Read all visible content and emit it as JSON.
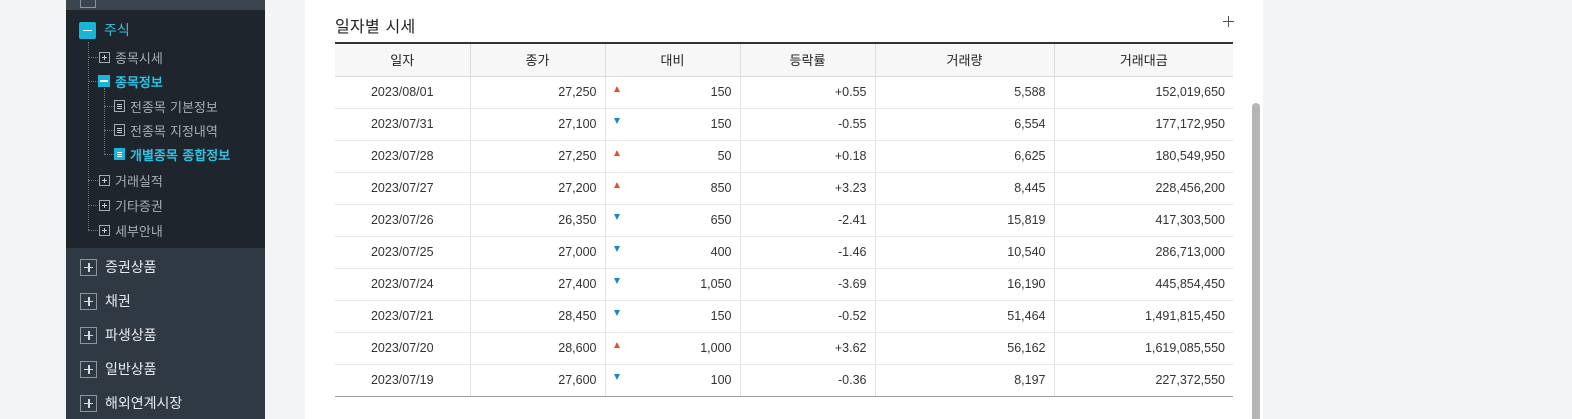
{
  "sidebar": {
    "stock_label": "주식",
    "children": [
      {
        "label": "종목시세"
      },
      {
        "label": "종목정보"
      },
      {
        "label": "거래실적"
      },
      {
        "label": "기타증권"
      },
      {
        "label": "세부안내"
      }
    ],
    "info_children": [
      {
        "label": "전종목 기본정보"
      },
      {
        "label": "전종목 지정내역"
      },
      {
        "label": "개별종목 종합정보"
      }
    ],
    "categories": [
      {
        "label": "증권상품"
      },
      {
        "label": "채권"
      },
      {
        "label": "파생상품"
      },
      {
        "label": "일반상품"
      },
      {
        "label": "해외연계시장"
      }
    ]
  },
  "section": {
    "title": "일자별 시세"
  },
  "table": {
    "headers": {
      "date": "일자",
      "close": "종가",
      "change": "대비",
      "rate": "등락률",
      "volume": "거래량",
      "amount": "거래대금"
    },
    "rows": [
      {
        "date": "2023/08/01",
        "close": "27,250",
        "dir": "up",
        "change": "150",
        "rate": "+0.55",
        "volume": "5,588",
        "amount": "152,019,650"
      },
      {
        "date": "2023/07/31",
        "close": "27,100",
        "dir": "down",
        "change": "150",
        "rate": "-0.55",
        "volume": "6,554",
        "amount": "177,172,950"
      },
      {
        "date": "2023/07/28",
        "close": "27,250",
        "dir": "up",
        "change": "50",
        "rate": "+0.18",
        "volume": "6,625",
        "amount": "180,549,950"
      },
      {
        "date": "2023/07/27",
        "close": "27,200",
        "dir": "up",
        "change": "850",
        "rate": "+3.23",
        "volume": "8,445",
        "amount": "228,456,200"
      },
      {
        "date": "2023/07/26",
        "close": "26,350",
        "dir": "down",
        "change": "650",
        "rate": "-2.41",
        "volume": "15,819",
        "amount": "417,303,500"
      },
      {
        "date": "2023/07/25",
        "close": "27,000",
        "dir": "down",
        "change": "400",
        "rate": "-1.46",
        "volume": "10,540",
        "amount": "286,713,000"
      },
      {
        "date": "2023/07/24",
        "close": "27,400",
        "dir": "down",
        "change": "1,050",
        "rate": "-3.69",
        "volume": "16,190",
        "amount": "445,854,450"
      },
      {
        "date": "2023/07/21",
        "close": "28,450",
        "dir": "down",
        "change": "150",
        "rate": "-0.52",
        "volume": "51,464",
        "amount": "1,491,815,450"
      },
      {
        "date": "2023/07/20",
        "close": "28,600",
        "dir": "up",
        "change": "1,000",
        "rate": "+3.62",
        "volume": "56,162",
        "amount": "1,619,085,550"
      },
      {
        "date": "2023/07/19",
        "close": "27,600",
        "dir": "down",
        "change": "100",
        "rate": "-0.36",
        "volume": "8,197",
        "amount": "227,372,550"
      }
    ]
  },
  "colors": {
    "up": "#ea4a35",
    "down": "#1a86d6",
    "accent": "#19b5d7",
    "sidebar_bg": "#2f3944",
    "tree_bg": "#1f252c"
  },
  "icons": {
    "expand": "plus-box-icon",
    "collapse": "minus-box-icon",
    "document": "document-icon",
    "up": "triangle-up-icon",
    "down": "triangle-down-icon"
  }
}
